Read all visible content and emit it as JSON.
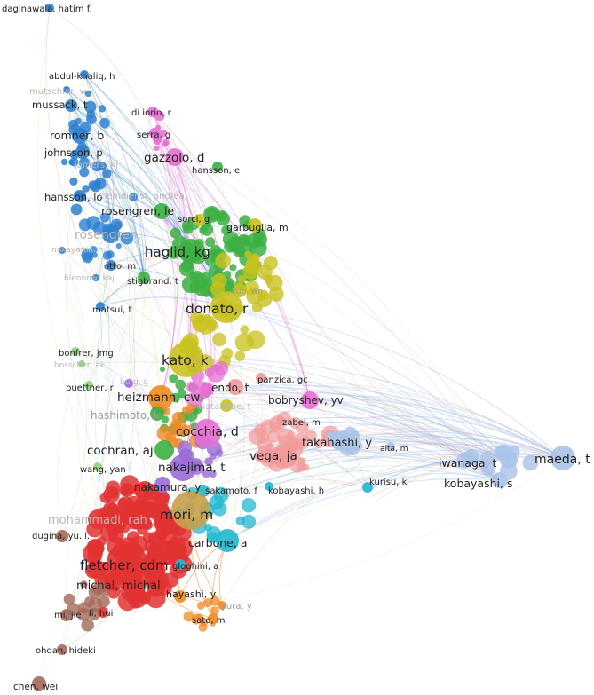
{
  "colors": {
    "blue": "#2e80cf",
    "pink": "#e56fd1",
    "green": "#3cb043",
    "olive": "#c8c21e",
    "red": "#e23232",
    "purple": "#9b6bd6",
    "orange": "#f08a24",
    "cyan": "#22b7cf",
    "lightblue": "#aac3e8",
    "salmon": "#f29a9a",
    "lightgreen": "#8fd37a",
    "brown": "#a5685a",
    "tan": "#c8a04a",
    "grey": "#9aa0a8"
  },
  "nodes": [
    {
      "id": "daginawala",
      "label": "daginawala, hatim f.",
      "cluster": "blue"
    },
    {
      "id": "abdul-khaliq",
      "label": "abdul-khaliq, h",
      "cluster": "blue"
    },
    {
      "id": "mutschler",
      "label": "mutschler, w",
      "cluster": "blue"
    },
    {
      "id": "mussack",
      "label": "mussack, t",
      "cluster": "blue"
    },
    {
      "id": "romner",
      "label": "romner, b",
      "cluster": "blue"
    },
    {
      "id": "johnsson",
      "label": "johnsson, p",
      "cluster": "blue"
    },
    {
      "id": "jamers",
      "label": "jamers, kj",
      "cluster": "blue"
    },
    {
      "id": "hansson-l",
      "label": "hansson, lo",
      "cluster": "blue"
    },
    {
      "id": "kleindienst",
      "label": "kleindienst, andrea",
      "cluster": "blue"
    },
    {
      "id": "rosengren-l",
      "label": "rosengren, l",
      "cluster": "blue"
    },
    {
      "id": "nakayama",
      "label": "nakayama, h",
      "cluster": "blue"
    },
    {
      "id": "otto",
      "label": "otto, m",
      "cluster": "blue"
    },
    {
      "id": "blennow",
      "label": "blennow, kaj",
      "cluster": "blue"
    },
    {
      "id": "matsui",
      "label": "matsui, t",
      "cluster": "blue"
    },
    {
      "id": "di-iorio",
      "label": "di iorio, r",
      "cluster": "pink"
    },
    {
      "id": "serra",
      "label": "serra, g",
      "cluster": "pink"
    },
    {
      "id": "gazzolo",
      "label": "gazzolo, d",
      "cluster": "pink"
    },
    {
      "id": "hansson-e",
      "label": "hansson, e",
      "cluster": "green"
    },
    {
      "id": "rosengren-le",
      "label": "rosengren, le",
      "cluster": "green"
    },
    {
      "id": "sorci",
      "label": "sorci, g",
      "cluster": "olive"
    },
    {
      "id": "garbuglia",
      "label": "garbuglia, m",
      "cluster": "olive"
    },
    {
      "id": "haglid",
      "label": "haglid, kg",
      "cluster": "green"
    },
    {
      "id": "stigbrand",
      "label": "stigbrand, t",
      "cluster": "green"
    },
    {
      "id": "kuo",
      "label": "kuo, wn",
      "cluster": "olive"
    },
    {
      "id": "donato",
      "label": "donato, r",
      "cluster": "olive"
    },
    {
      "id": "bonfrer",
      "label": "bonfrer, jmg",
      "cluster": "lightgreen"
    },
    {
      "id": "bosscher",
      "label": "bosscher, ak",
      "cluster": "lightgreen"
    },
    {
      "id": "kato",
      "label": "kato, k",
      "cluster": "olive"
    },
    {
      "id": "buettner",
      "label": "buettner, r",
      "cluster": "lightgreen"
    },
    {
      "id": "burg",
      "label": "burg, g",
      "cluster": "purple"
    },
    {
      "id": "heizmann",
      "label": "heizmann, cw",
      "cluster": "orange"
    },
    {
      "id": "endo",
      "label": "endo, t",
      "cluster": "salmon"
    },
    {
      "id": "panzica",
      "label": "panzica, gc",
      "cluster": "salmon"
    },
    {
      "id": "bobryshev",
      "label": "bobryshev, yv",
      "cluster": "pink"
    },
    {
      "id": "hashimoto",
      "label": "hashimoto, k",
      "cluster": "green"
    },
    {
      "id": "watanabe",
      "label": "watanabe, t",
      "cluster": "olive"
    },
    {
      "id": "zabel",
      "label": "zabel, m",
      "cluster": "salmon"
    },
    {
      "id": "cocchia",
      "label": "cocchia, d",
      "cluster": "pink"
    },
    {
      "id": "takahashi",
      "label": "takahashi, y",
      "cluster": "lightblue"
    },
    {
      "id": "aita",
      "label": "aita, m",
      "cluster": "lightblue"
    },
    {
      "id": "maeda",
      "label": "maeda, t",
      "cluster": "lightblue"
    },
    {
      "id": "iwanaga",
      "label": "iwanaga, t",
      "cluster": "lightblue"
    },
    {
      "id": "cochran",
      "label": "cochran, aj",
      "cluster": "green"
    },
    {
      "id": "wang-yan",
      "label": "wang, yan",
      "cluster": "lightgreen"
    },
    {
      "id": "vega",
      "label": "vega, ja",
      "cluster": "salmon"
    },
    {
      "id": "nakajima",
      "label": "nakajima, t",
      "cluster": "purple"
    },
    {
      "id": "kurisu",
      "label": "kurisu, k",
      "cluster": "cyan"
    },
    {
      "id": "kobayashi-s",
      "label": "kobayashi, s",
      "cluster": "lightblue"
    },
    {
      "id": "nakamura",
      "label": "nakamura, y",
      "cluster": "purple"
    },
    {
      "id": "sakamoto",
      "label": "sakamoto, f",
      "cluster": "cyan"
    },
    {
      "id": "kobayashi-h",
      "label": "kobayashi, h",
      "cluster": "cyan"
    },
    {
      "id": "mori",
      "label": "mori, m",
      "cluster": "tan"
    },
    {
      "id": "mohammadi",
      "label": "mohammadi, rah",
      "cluster": "red"
    },
    {
      "id": "dugina",
      "label": "dugina, yu. l.",
      "cluster": "brown"
    },
    {
      "id": "carbone",
      "label": "carbone, a",
      "cluster": "cyan"
    },
    {
      "id": "fletcher",
      "label": "fletcher, cdm",
      "cluster": "red"
    },
    {
      "id": "gloghini",
      "label": "gloghini, a",
      "cluster": "cyan"
    },
    {
      "id": "michal",
      "label": "michal, michal",
      "cluster": "red"
    },
    {
      "id": "hayashi",
      "label": "hayashi, y",
      "cluster": "orange"
    },
    {
      "id": "yura",
      "label": "yura, y",
      "cluster": "orange"
    },
    {
      "id": "mi-jie",
      "label": "mi, jie",
      "cluster": "brown"
    },
    {
      "id": "li-hui",
      "label": "li, hui",
      "cluster": "red"
    },
    {
      "id": "sato",
      "label": "sato, m",
      "cluster": "orange"
    },
    {
      "id": "ohdan",
      "label": "ohdan, hideki",
      "cluster": "brown"
    },
    {
      "id": "chen-wei",
      "label": "chen, wei",
      "cluster": "brown"
    }
  ]
}
